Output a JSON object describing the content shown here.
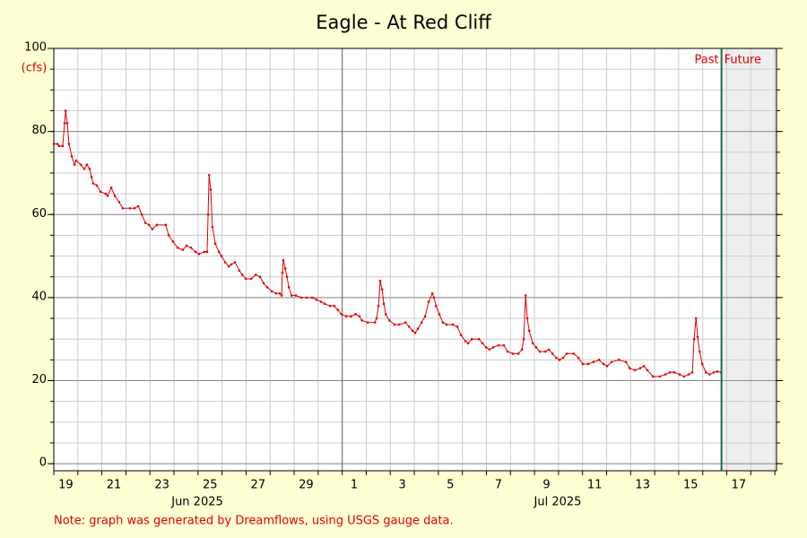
{
  "chart_data": {
    "type": "line",
    "title": "Eagle - At Red Cliff",
    "y_unit": "(cfs)",
    "note": "Note: graph was generated by Dreamflows, using USGS gauge data.",
    "month_labels": [
      "Jun 2025",
      "Jul 2025"
    ],
    "past_label": "Past",
    "future_label": "Future",
    "now": 46.78,
    "month_boundary": 31,
    "color": "#e00000",
    "grid": true,
    "xlim": [
      19,
      49.07
    ],
    "ylim": [
      -1.7,
      100
    ],
    "yticks": [
      0,
      20,
      40,
      60,
      80,
      100
    ],
    "yminorticks": [
      0,
      5,
      10,
      15,
      20,
      25,
      30,
      35,
      40,
      45,
      50,
      55,
      60,
      65,
      70,
      75,
      80,
      85,
      90,
      95,
      100
    ],
    "xminorticks": [
      19,
      20,
      21,
      22,
      23,
      24,
      25,
      26,
      27,
      28,
      29,
      30,
      31,
      32,
      33,
      34,
      35,
      36,
      37,
      38,
      39,
      40,
      41,
      42,
      43,
      44,
      45,
      46,
      47,
      48,
      49
    ],
    "xticks": [
      {
        "value": 19.5,
        "label": "19"
      },
      {
        "value": 21.5,
        "label": "21"
      },
      {
        "value": 23.5,
        "label": "23"
      },
      {
        "value": 25.5,
        "label": "25"
      },
      {
        "value": 27.5,
        "label": "27"
      },
      {
        "value": 29.5,
        "label": "29"
      },
      {
        "value": 31.5,
        "label": "1"
      },
      {
        "value": 33.5,
        "label": "3"
      },
      {
        "value": 35.5,
        "label": "5"
      },
      {
        "value": 37.5,
        "label": "7"
      },
      {
        "value": 39.5,
        "label": "9"
      },
      {
        "value": 41.5,
        "label": "11"
      },
      {
        "value": 43.5,
        "label": "13"
      },
      {
        "value": 45.5,
        "label": "15"
      },
      {
        "value": 47.5,
        "label": "17"
      }
    ],
    "x": [
      19.0,
      19.15,
      19.22,
      19.37,
      19.45,
      19.49,
      19.56,
      19.63,
      19.75,
      19.86,
      19.93,
      20.12,
      20.27,
      20.38,
      20.49,
      20.57,
      20.64,
      20.79,
      20.94,
      21.16,
      21.24,
      21.39,
      21.54,
      21.72,
      21.87,
      22.17,
      22.36,
      22.51,
      22.66,
      22.81,
      22.96,
      23.1,
      23.29,
      23.66,
      23.78,
      23.96,
      24.15,
      24.37,
      24.52,
      24.71,
      24.9,
      25.04,
      25.27,
      25.38,
      25.42,
      25.46,
      25.53,
      25.6,
      25.72,
      25.87,
      25.98,
      26.13,
      26.28,
      26.39,
      26.54,
      26.72,
      26.84,
      26.99,
      27.21,
      27.4,
      27.58,
      27.73,
      27.88,
      28.07,
      28.25,
      28.4,
      28.48,
      28.51,
      28.55,
      28.63,
      28.7,
      28.78,
      28.89,
      29.07,
      29.3,
      29.52,
      29.75,
      29.93,
      30.12,
      30.27,
      30.49,
      30.67,
      30.82,
      30.97,
      31.16,
      31.37,
      31.56,
      31.72,
      31.82,
      32.06,
      32.36,
      32.43,
      32.51,
      32.58,
      32.66,
      32.73,
      32.81,
      32.96,
      33.18,
      33.37,
      33.63,
      33.78,
      33.93,
      34.04,
      34.15,
      34.3,
      34.45,
      34.6,
      34.75,
      34.82,
      34.9,
      35.04,
      35.19,
      35.34,
      35.6,
      35.79,
      35.94,
      36.13,
      36.24,
      36.39,
      36.69,
      36.84,
      36.99,
      37.13,
      37.28,
      37.51,
      37.73,
      37.88,
      38.1,
      38.33,
      38.48,
      38.55,
      38.63,
      38.7,
      38.78,
      38.93,
      39.07,
      39.22,
      39.45,
      39.6,
      39.75,
      39.9,
      40.04,
      40.19,
      40.34,
      40.64,
      40.83,
      41.01,
      41.24,
      41.46,
      41.69,
      41.87,
      42.02,
      42.21,
      42.51,
      42.81,
      42.96,
      43.18,
      43.4,
      43.55,
      43.7,
      43.93,
      44.22,
      44.45,
      44.63,
      44.81,
      45.04,
      45.22,
      45.42,
      45.57,
      45.64,
      45.72,
      45.79,
      45.87,
      45.98,
      46.13,
      46.28,
      46.46,
      46.61,
      46.76
    ],
    "values": [
      77,
      77,
      76.5,
      76.5,
      82,
      85,
      82,
      77,
      74,
      72,
      73,
      72,
      71,
      72,
      71,
      69,
      67.5,
      67,
      65.5,
      65,
      64.5,
      66.5,
      64.5,
      63,
      61.5,
      61.5,
      61.5,
      62,
      60,
      58,
      57.5,
      56.5,
      57.5,
      57.5,
      55,
      53.5,
      52,
      51.5,
      52.5,
      52,
      51,
      50.5,
      51,
      51,
      60,
      69.5,
      66,
      57,
      53,
      51,
      50,
      48.5,
      47.5,
      48,
      48.5,
      46.5,
      45.5,
      44.5,
      44.5,
      45.5,
      45,
      43.5,
      42.5,
      41.5,
      41,
      41,
      40.5,
      46,
      49,
      47,
      45,
      42.5,
      40.5,
      40.5,
      40,
      40,
      40,
      39.5,
      39,
      38.5,
      38,
      38,
      37,
      36,
      35.5,
      35.5,
      36,
      35.5,
      34.5,
      34,
      34,
      35,
      38,
      44,
      42,
      38.5,
      36,
      34.5,
      33.5,
      33.5,
      34,
      33,
      32,
      31.5,
      32.5,
      34,
      35.5,
      39,
      41,
      40,
      38,
      36,
      34,
      33.5,
      33.5,
      33,
      31,
      29.5,
      29,
      30,
      30,
      29,
      28,
      27.5,
      28,
      28.5,
      28.5,
      27,
      26.5,
      26.5,
      27.5,
      30,
      40.5,
      35,
      32,
      29,
      28,
      27,
      27,
      27.5,
      26.5,
      25.5,
      25,
      25.5,
      26.5,
      26.5,
      25.5,
      24,
      24,
      24.5,
      25,
      24,
      23.5,
      24.5,
      25,
      24.5,
      23,
      22.5,
      23,
      23.5,
      22.5,
      21,
      21,
      21.5,
      22,
      22,
      21.5,
      21,
      21.5,
      22,
      30,
      35,
      30.5,
      27,
      24,
      22,
      21.5,
      22,
      22.2,
      22
    ]
  }
}
